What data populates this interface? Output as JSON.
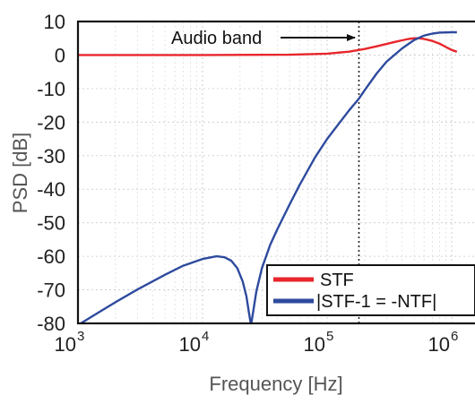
{
  "chart_data": {
    "type": "line",
    "xlabel": "Frequency [Hz]",
    "ylabel": "PSD [dB]",
    "xscale": "log",
    "xlim": [
      1000,
      1000000
    ],
    "ylim": [
      -80,
      10
    ],
    "grid": true,
    "legend_position": "bottom-right",
    "x_ticks": [
      {
        "value": 1000,
        "base": "10",
        "exp": "3"
      },
      {
        "value": 10000,
        "base": "10",
        "exp": "4"
      },
      {
        "value": 100000,
        "base": "10",
        "exp": "5"
      },
      {
        "value": 1000000,
        "base": "10",
        "exp": "6"
      }
    ],
    "y_ticks": [
      10,
      0,
      -10,
      -20,
      -30,
      -40,
      -50,
      -60,
      -70,
      -80
    ],
    "annotation": {
      "text": "Audio band",
      "x": 180000
    },
    "series": [
      {
        "name": "STF",
        "color": "#e8262b",
        "points": [
          [
            1000,
            0
          ],
          [
            10000,
            0
          ],
          [
            50000,
            0.1
          ],
          [
            100000,
            0.4
          ],
          [
            150000,
            1.0
          ],
          [
            200000,
            1.8
          ],
          [
            250000,
            2.6
          ],
          [
            300000,
            3.3
          ],
          [
            350000,
            3.9
          ],
          [
            400000,
            4.4
          ],
          [
            450000,
            4.8
          ],
          [
            500000,
            5.0
          ],
          [
            550000,
            5.0
          ],
          [
            600000,
            4.8
          ],
          [
            700000,
            4.2
          ],
          [
            800000,
            3.4
          ],
          [
            900000,
            2.4
          ],
          [
            1000000,
            1.5
          ],
          [
            1100000,
            1.0
          ]
        ]
      },
      {
        "name": "|STF-1 = -NTF|",
        "color": "#2e4a9e",
        "points": [
          [
            1000,
            -80.5
          ],
          [
            1500,
            -76.5
          ],
          [
            2000,
            -73.7
          ],
          [
            3000,
            -69.9
          ],
          [
            5000,
            -65.5
          ],
          [
            7000,
            -62.8
          ],
          [
            10000,
            -60.8
          ],
          [
            13000,
            -60.0
          ],
          [
            15000,
            -60.3
          ],
          [
            17000,
            -61.3
          ],
          [
            19000,
            -63.5
          ],
          [
            21000,
            -67.5
          ],
          [
            22500,
            -72.0
          ],
          [
            23500,
            -76.5
          ],
          [
            24500,
            -80.5
          ],
          [
            25500,
            -76.5
          ],
          [
            27000,
            -70.5
          ],
          [
            30000,
            -63.5
          ],
          [
            35000,
            -56.5
          ],
          [
            40000,
            -51.8
          ],
          [
            50000,
            -44.5
          ],
          [
            60000,
            -38.8
          ],
          [
            80000,
            -30.5
          ],
          [
            100000,
            -25.0
          ],
          [
            150000,
            -16.5
          ],
          [
            180000,
            -13.0
          ],
          [
            200000,
            -10.5
          ],
          [
            250000,
            -5.5
          ],
          [
            300000,
            -2.0
          ],
          [
            400000,
            2.0
          ],
          [
            500000,
            4.5
          ],
          [
            600000,
            5.8
          ],
          [
            700000,
            6.4
          ],
          [
            800000,
            6.7
          ],
          [
            1000000,
            6.8
          ],
          [
            1100000,
            6.8
          ]
        ]
      }
    ]
  }
}
